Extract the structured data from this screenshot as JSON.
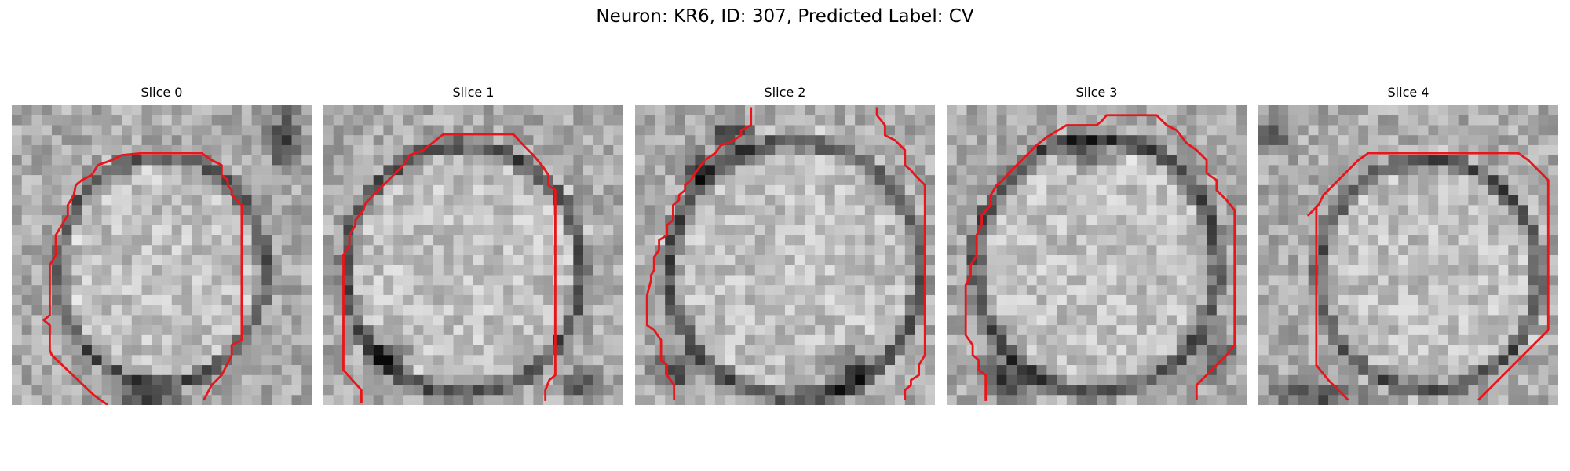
{
  "figure": {
    "title": "Neuron: KR6, ID: 307, Predicted Label: CV"
  },
  "slices": [
    {
      "title": "Slice 0",
      "contour_color": "#e8151b"
    },
    {
      "title": "Slice 1",
      "contour_color": "#e8151b"
    },
    {
      "title": "Slice 2",
      "contour_color": "#e8151b"
    },
    {
      "title": "Slice 3",
      "contour_color": "#e8151b"
    },
    {
      "title": "Slice 4",
      "contour_color": "#e8151b"
    }
  ]
}
